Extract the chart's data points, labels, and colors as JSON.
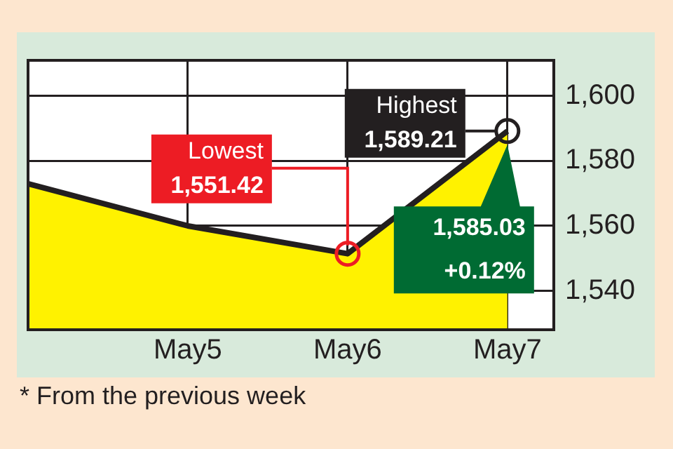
{
  "chart_data": {
    "type": "area",
    "categories": [
      null,
      "May5",
      "May6",
      "May7"
    ],
    "values": [
      1573,
      1560,
      1551.42,
      1589.21
    ],
    "color": "#fff200",
    "ylim": [
      1528,
      1611
    ],
    "yticks": [
      {
        "value": 1540,
        "label": "1,540"
      },
      {
        "value": 1560,
        "label": "1,560"
      },
      {
        "value": 1580,
        "label": "1,580"
      },
      {
        "value": 1600,
        "label": "1,600"
      }
    ],
    "grid": true,
    "annotations": [
      {
        "text": "Lowest\n1,551.42",
        "x": "May6",
        "y": 1551.42
      },
      {
        "text": "Highest\n1,589.21",
        "x": "May7",
        "y": 1589.21
      },
      {
        "text": "1,585.03\n+0.12%",
        "x": "May7",
        "y": 1585.03
      },
      "* From the previous week"
    ]
  }
}
